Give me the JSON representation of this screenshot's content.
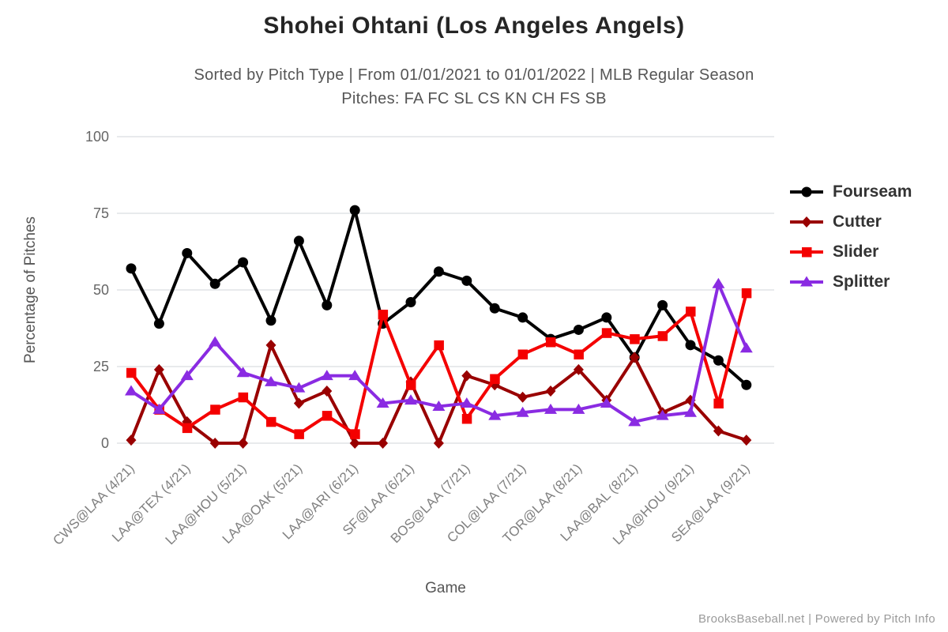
{
  "header": {
    "title": "Shohei Ohtani (Los Angeles Angels)",
    "subtitle1": "Sorted by Pitch Type | From 01/01/2021 to 01/01/2022 | MLB Regular Season",
    "subtitle2": "Pitches: FA FC SL CS KN CH FS SB"
  },
  "footer": {
    "credit": "BrooksBaseball.net | Powered by Pitch Info"
  },
  "chart_data": {
    "type": "line",
    "title": "Shohei Ohtani (Los Angeles Angels)",
    "xlabel": "Game",
    "ylabel": "Percentage of Pitches",
    "ylim": [
      0,
      100
    ],
    "yticks": [
      0,
      25,
      50,
      75,
      100
    ],
    "grid": "horizontal",
    "legend_position": "right",
    "n_points": 23,
    "x_tick_indices": [
      0,
      2,
      4,
      6,
      8,
      10,
      12,
      14,
      16,
      18,
      20,
      22
    ],
    "x_tick_labels": [
      "CWS@LAA (4/21)",
      "LAA@TEX (4/21)",
      "LAA@HOU (5/21)",
      "LAA@OAK (5/21)",
      "LAA@ARI (6/21)",
      "SF@LAA (6/21)",
      "BOS@LAA (7/21)",
      "COL@LAA (7/21)",
      "TOR@LAA (8/21)",
      "LAA@BAL (8/21)",
      "LAA@HOU (9/21)",
      "SEA@LAA (9/21)"
    ],
    "series": [
      {
        "name": "Fourseam",
        "color": "#000000",
        "marker": "circle",
        "values": [
          57,
          39,
          62,
          52,
          59,
          40,
          66,
          45,
          76,
          39,
          46,
          56,
          53,
          44,
          41,
          34,
          37,
          41,
          28,
          45,
          32,
          27,
          19
        ]
      },
      {
        "name": "Cutter",
        "color": "#990000",
        "marker": "diamond",
        "values": [
          1,
          24,
          7,
          0,
          0,
          32,
          13,
          17,
          0,
          0,
          20,
          0,
          22,
          19,
          15,
          17,
          24,
          14,
          28,
          10,
          14,
          4,
          1
        ]
      },
      {
        "name": "Slider",
        "color": "#f40000",
        "marker": "square",
        "values": [
          23,
          11,
          5,
          11,
          15,
          7,
          3,
          9,
          3,
          42,
          19,
          32,
          8,
          21,
          29,
          33,
          29,
          36,
          34,
          35,
          43,
          13,
          49
        ]
      },
      {
        "name": "Splitter",
        "color": "#8a2be2",
        "marker": "triangle",
        "values": [
          17,
          11,
          22,
          33,
          23,
          20,
          18,
          22,
          22,
          13,
          14,
          12,
          13,
          9,
          10,
          11,
          11,
          13,
          7,
          9,
          10,
          52,
          31
        ]
      }
    ],
    "style": {
      "grid_color": "#d9dde1",
      "tick_color": "#666666",
      "x_tick_color": "#808080",
      "axis_title_color": "#555555"
    }
  }
}
